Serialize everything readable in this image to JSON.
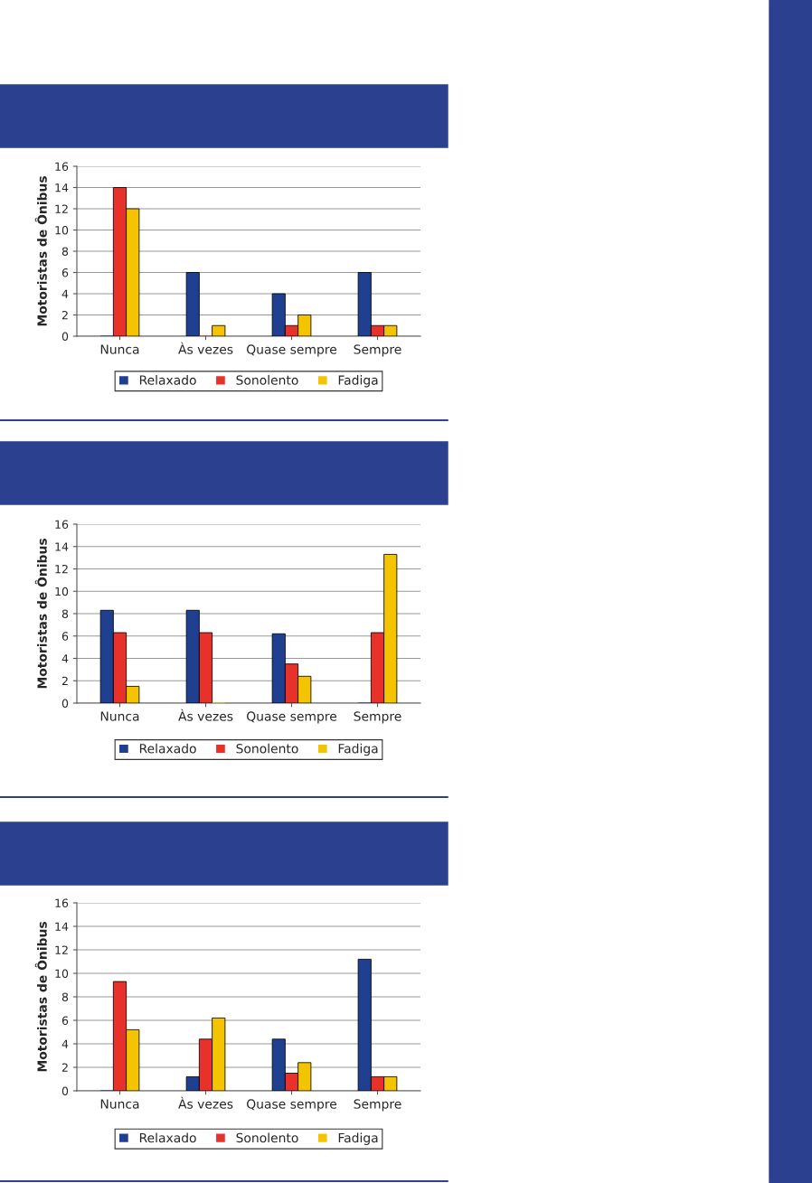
{
  "chart_data": [
    {
      "type": "bar",
      "ylabel": "Motoristas de Ônibus",
      "categories": [
        "Nunca",
        "Às vezes",
        "Quase sempre",
        "Sempre"
      ],
      "ylim": [
        0,
        16
      ],
      "yticks": [
        0,
        2,
        4,
        6,
        8,
        10,
        12,
        14,
        16
      ],
      "grid": "y",
      "legend": "bottom",
      "series": [
        {
          "name": "Relaxado",
          "color": "#1f3f91",
          "values": [
            0,
            6,
            4,
            6
          ]
        },
        {
          "name": "Sonolento",
          "color": "#e8312b",
          "values": [
            14,
            0,
            1,
            1
          ]
        },
        {
          "name": "Fadiga",
          "color": "#f5c400",
          "values": [
            12,
            1,
            2,
            1
          ]
        }
      ]
    },
    {
      "type": "bar",
      "ylabel": "Motoristas de Ônibus",
      "categories": [
        "Nunca",
        "Às vezes",
        "Quase sempre",
        "Sempre"
      ],
      "ylim": [
        0,
        16
      ],
      "yticks": [
        0,
        2,
        4,
        6,
        8,
        10,
        12,
        14,
        16
      ],
      "grid": "y",
      "legend": "bottom",
      "series": [
        {
          "name": "Relaxado",
          "color": "#1f3f91",
          "values": [
            8.3,
            8.3,
            6.2,
            0
          ]
        },
        {
          "name": "Sonolento",
          "color": "#e8312b",
          "values": [
            6.3,
            6.3,
            3.5,
            6.3
          ]
        },
        {
          "name": "Fadiga",
          "color": "#f5c400",
          "values": [
            1.5,
            0,
            2.4,
            13.3
          ]
        }
      ]
    },
    {
      "type": "bar",
      "ylabel": "Motoristas de Ônibus",
      "categories": [
        "Nunca",
        "Às vezes",
        "Quase sempre",
        "Sempre"
      ],
      "ylim": [
        0,
        16
      ],
      "yticks": [
        0,
        2,
        4,
        6,
        8,
        10,
        12,
        14,
        16
      ],
      "grid": "y",
      "legend": "bottom",
      "series": [
        {
          "name": "Relaxado",
          "color": "#1f3f91",
          "values": [
            0,
            1.2,
            4.4,
            11.2
          ]
        },
        {
          "name": "Sonolento",
          "color": "#e8312b",
          "values": [
            9.3,
            4.4,
            1.5,
            1.2
          ]
        },
        {
          "name": "Fadiga",
          "color": "#f5c400",
          "values": [
            5.2,
            6.2,
            2.4,
            1.2
          ]
        }
      ]
    }
  ]
}
